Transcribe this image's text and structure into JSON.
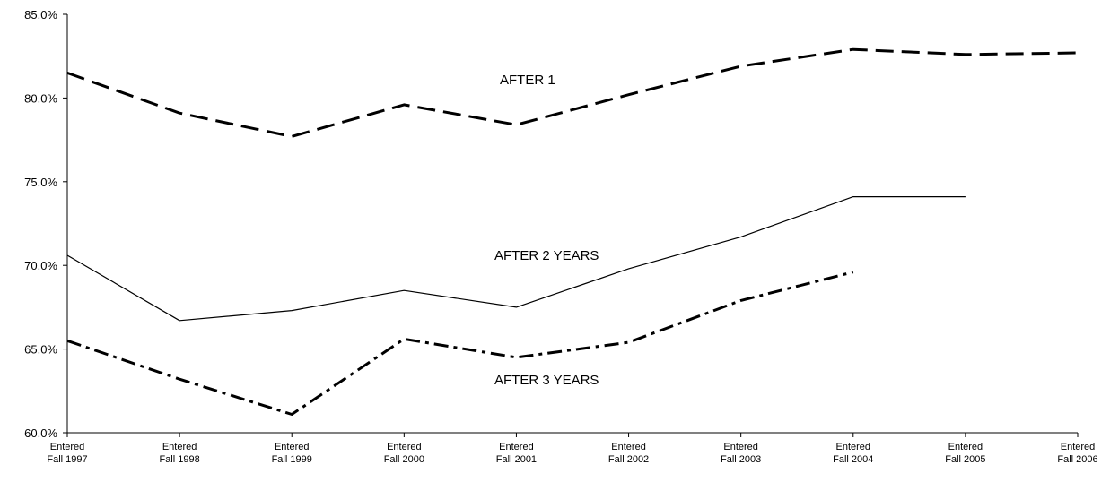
{
  "chart_data": {
    "type": "line",
    "categories": [
      [
        "Entered",
        "Fall 1997"
      ],
      [
        "Entered",
        "Fall 1998"
      ],
      [
        "Entered",
        "Fall 1999"
      ],
      [
        "Entered",
        "Fall 2000"
      ],
      [
        "Entered",
        "Fall 2001"
      ],
      [
        "Entered",
        "Fall 2002"
      ],
      [
        "Entered",
        "Fall 2003"
      ],
      [
        "Entered",
        "Fall 2004"
      ],
      [
        "Entered",
        "Fall 2005"
      ],
      [
        "Entered",
        "Fall 2006"
      ]
    ],
    "ylim": [
      60,
      85
    ],
    "yticks": [
      60,
      65,
      70,
      75,
      80,
      85
    ],
    "ytick_labels": [
      "60.0%",
      "65.0%",
      "70.0%",
      "75.0%",
      "80.0%",
      "85.0%"
    ],
    "grid": false,
    "series": [
      {
        "name": "AFTER 1",
        "line_style": "dashed",
        "values": [
          81.5,
          79.1,
          77.7,
          79.6,
          78.4,
          80.2,
          81.9,
          82.9,
          82.6,
          82.7
        ]
      },
      {
        "name": "AFTER 2 YEARS",
        "line_style": "solid",
        "values": [
          70.6,
          66.7,
          67.3,
          68.5,
          67.5,
          69.8,
          71.7,
          74.1,
          74.1,
          null
        ]
      },
      {
        "name": "AFTER 3 YEARS",
        "line_style": "dash-dot",
        "values": [
          65.5,
          63.2,
          61.1,
          65.6,
          64.5,
          65.4,
          67.9,
          69.6,
          null,
          null
        ]
      }
    ]
  }
}
